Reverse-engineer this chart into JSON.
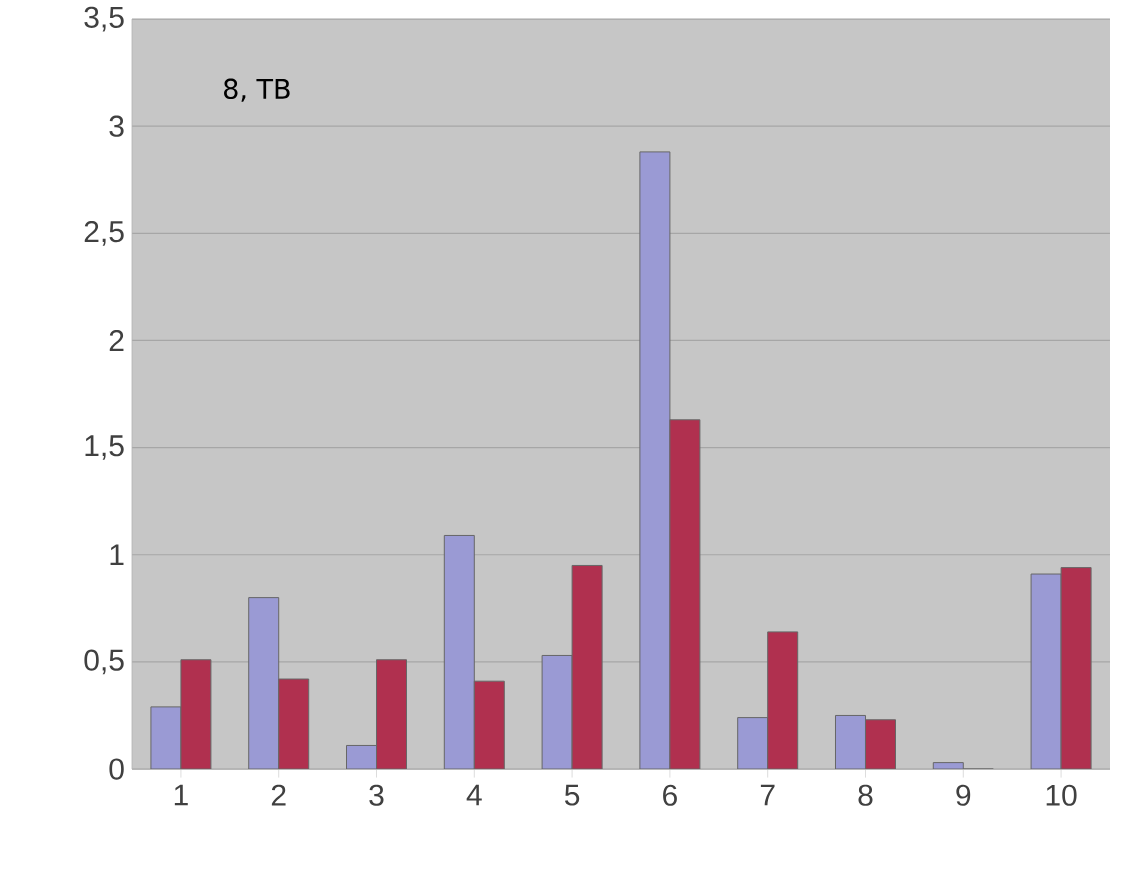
{
  "chart_data": {
    "type": "bar",
    "categories": [
      "1",
      "2",
      "3",
      "4",
      "5",
      "6",
      "7",
      "8",
      "9",
      "10"
    ],
    "series": [
      {
        "color": "#9a9ad4",
        "values": [
          0.29,
          0.8,
          0.11,
          1.09,
          0.53,
          2.88,
          0.24,
          0.25,
          0.03,
          0.91
        ]
      },
      {
        "color": "#b0304f",
        "values": [
          0.51,
          0.42,
          0.51,
          0.41,
          0.95,
          1.63,
          0.64,
          0.23,
          0,
          0.94
        ]
      }
    ],
    "ylim": [
      0,
      3.5
    ],
    "yticks": [
      0,
      {
        "value": 0.5,
        "label": "0,5"
      },
      1,
      {
        "value": 1.5,
        "label": "1,5"
      },
      2,
      {
        "value": 2.5,
        "label": "2,5"
      },
      3,
      {
        "value": 3.5,
        "label": "3,5"
      }
    ],
    "grid": "y",
    "annotations": [
      "8, TB"
    ]
  }
}
